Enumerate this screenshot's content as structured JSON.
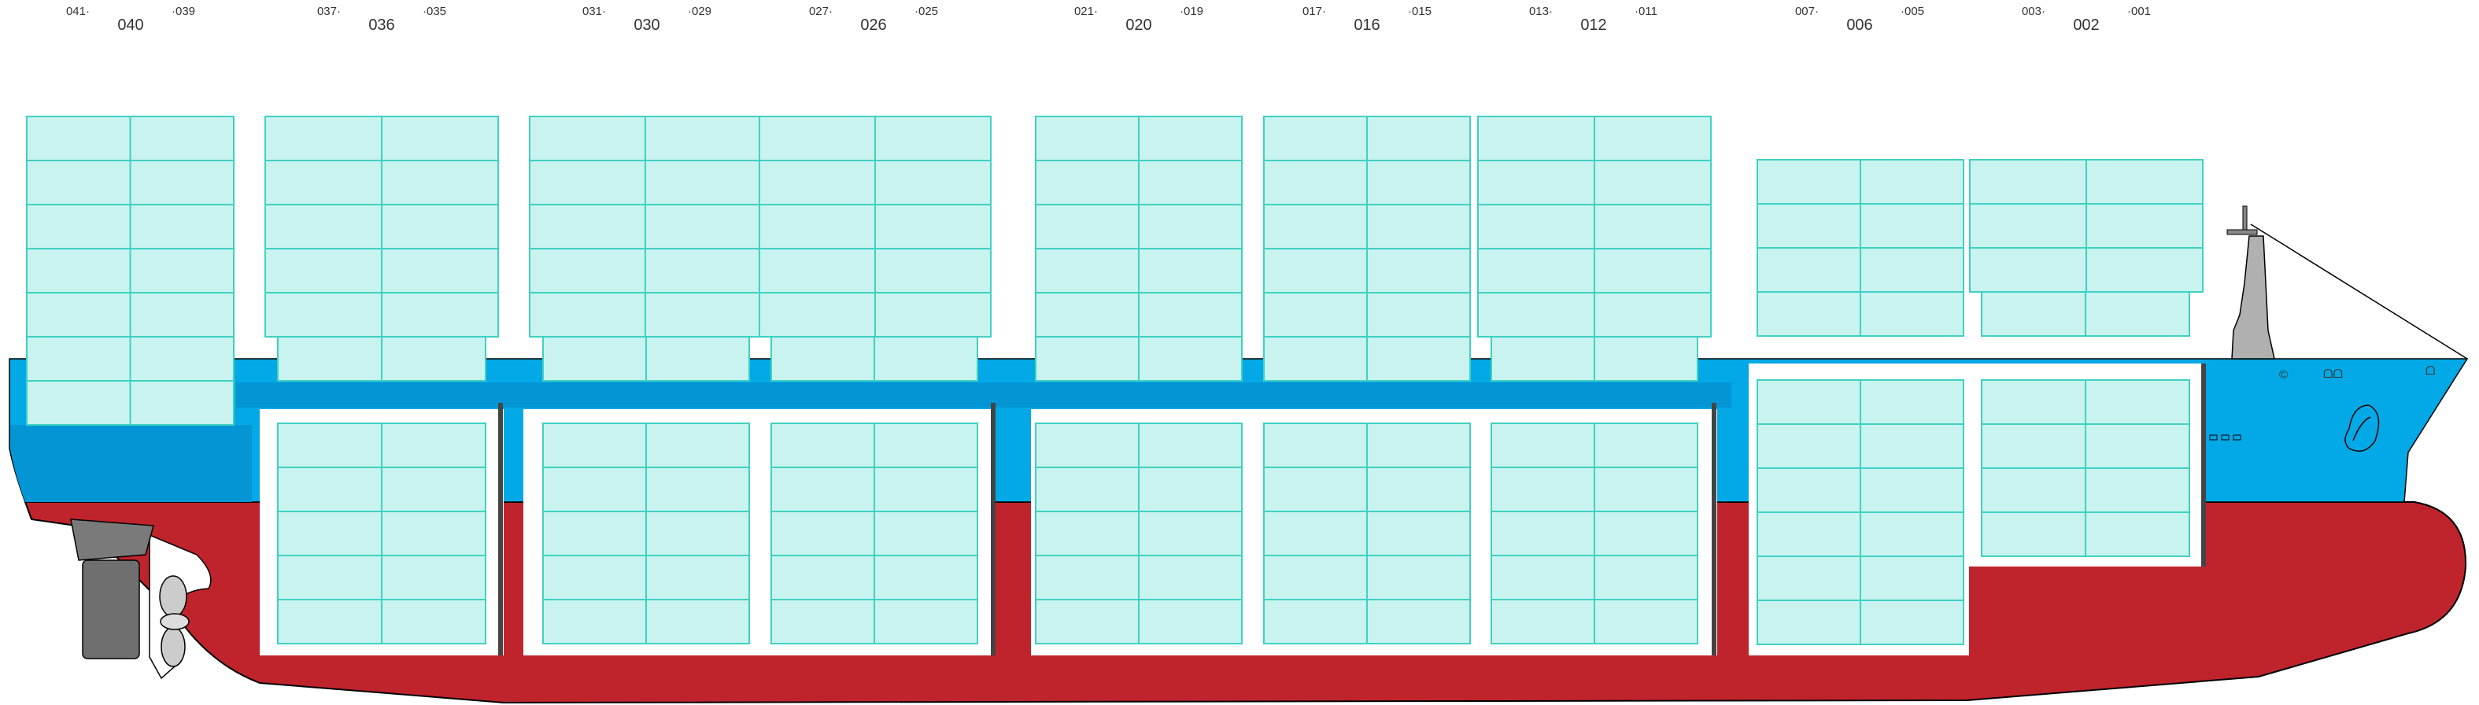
{
  "colors": {
    "hull_red": "#bf242c",
    "hull_blue_dark": "#0395d4",
    "hull_blue_light": "#03a9e6",
    "container_fill": "#c8f3ef",
    "container_stroke": "#3fd1c2",
    "hold_fill": "#ffffff",
    "machinery_gray": "#7a7a7a",
    "outline": "#000000"
  },
  "bays": [
    {
      "label": "040",
      "left": "041·",
      "right": "·039"
    },
    {
      "label": "036",
      "left": "037·",
      "right": "·035"
    },
    {
      "label": "030",
      "left": "031·",
      "right": "·029"
    },
    {
      "label": "026",
      "left": "027·",
      "right": "·025"
    },
    {
      "label": "020",
      "left": "021·",
      "right": "·019"
    },
    {
      "label": "016",
      "left": "017·",
      "right": "·015"
    },
    {
      "label": "012",
      "left": "013·",
      "right": "·011"
    },
    {
      "label": "006",
      "left": "007·",
      "right": "·005"
    },
    {
      "label": "002",
      "left": "003·",
      "right": "·001"
    }
  ],
  "bow_marks": {
    "symbol": "©",
    "draft_mark_1": "ᗝᗝ",
    "draft_mark_2": "ᗝ"
  }
}
